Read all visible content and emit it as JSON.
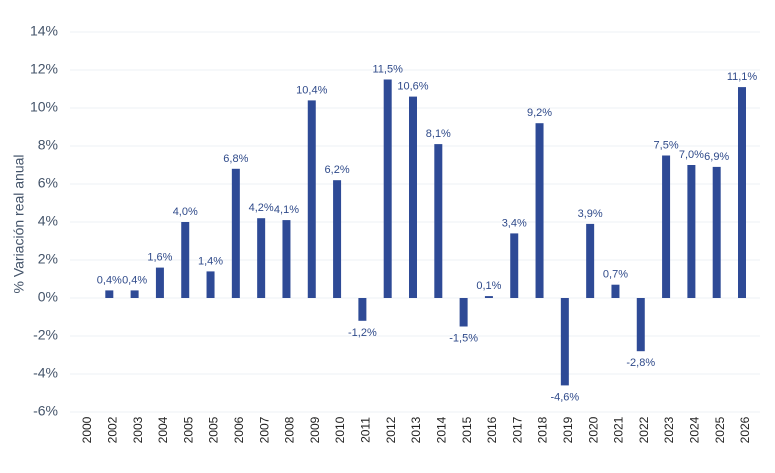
{
  "chart_data": {
    "type": "bar",
    "ylabel": "% Variación real anual",
    "xlabel": "",
    "title": "",
    "ylim": [
      -6,
      14
    ],
    "ytick_step": 2,
    "ytick_format": "percent-integer",
    "grid": true,
    "bar_color": "#2e4a96",
    "label_color": "#2f4a8a",
    "categories": [
      "2000",
      "2002",
      "2003",
      "2004",
      "2005",
      "2005",
      "2006",
      "2007",
      "2008",
      "2009",
      "2010",
      "2011",
      "2012",
      "2013",
      "2014",
      "2015",
      "2016",
      "2017",
      "2018",
      "2019",
      "2020",
      "2021",
      "2022",
      "2023",
      "2024",
      "2025",
      "2026"
    ],
    "values": [
      null,
      0.4,
      0.4,
      1.6,
      4.0,
      1.4,
      6.8,
      4.2,
      4.1,
      10.4,
      6.2,
      -1.2,
      11.5,
      10.6,
      8.1,
      -1.5,
      0.1,
      3.4,
      9.2,
      -4.6,
      3.9,
      0.7,
      -2.8,
      7.5,
      7.0,
      6.9,
      11.1
    ],
    "data_labels": [
      "",
      "0,4%",
      "0,4%",
      "1,6%",
      "4,0%",
      "1,4%",
      "6,8%",
      "4,2%",
      "4,1%",
      "10,4%",
      "6,2%",
      "-1,2%",
      "11,5%",
      "10,6%",
      "8,1%",
      "-1,5%",
      "0,1%",
      "3,4%",
      "9,2%",
      "-4,6%",
      "3,9%",
      "0,7%",
      "-2,8%",
      "7,5%",
      "7,0%",
      "6,9%",
      "11,1%"
    ],
    "ytick_labels": [
      "-6%",
      "-4%",
      "-2%",
      "0%",
      "2%",
      "4%",
      "6%",
      "8%",
      "10%",
      "12%",
      "14%"
    ]
  }
}
